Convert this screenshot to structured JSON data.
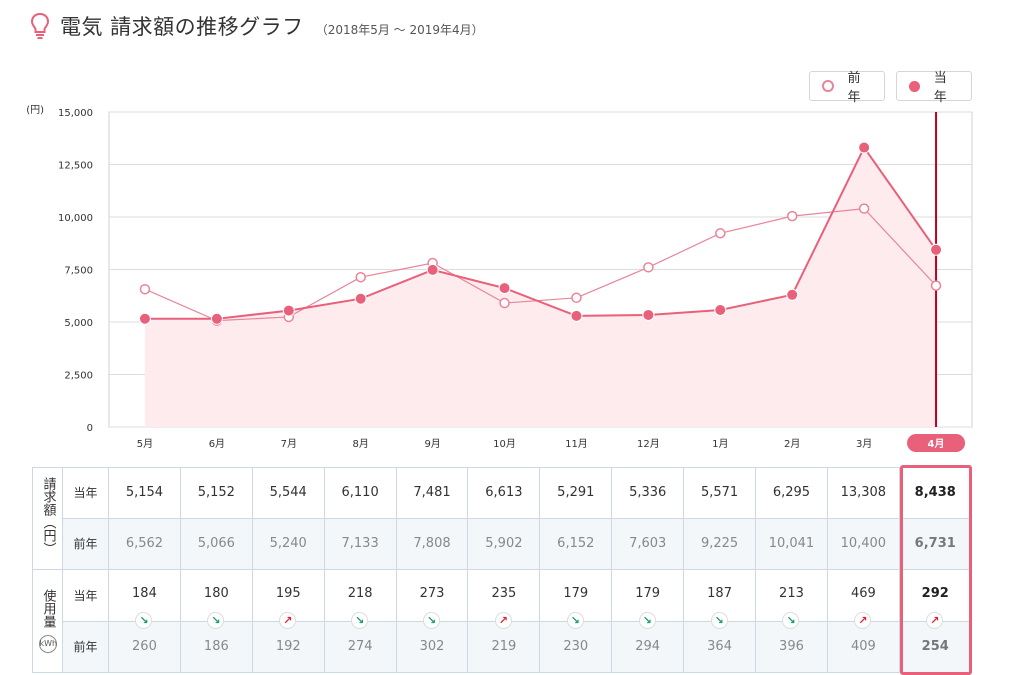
{
  "header": {
    "icon": "lightbulb-icon",
    "title": "電気 請求額の推移グラフ",
    "period": "（2018年5月 〜 2019年4月）"
  },
  "legend": {
    "prev_label": "前年",
    "curr_label": "当年"
  },
  "colors": {
    "accent": "#e8607a",
    "current_line": "#e8607a",
    "previous_line": "#e8859a",
    "area_fill": "#fdebee",
    "marker_line": "#c00020",
    "down_arrow": "#1a9a6c",
    "up_arrow": "#e0203a"
  },
  "chart_data": {
    "type": "line",
    "ylabel": "(円)",
    "ylim": [
      0,
      15000
    ],
    "yticks": [
      "0",
      "2,500",
      "5,000",
      "7,500",
      "10,000",
      "12,500",
      "15,000"
    ],
    "categories": [
      "5月",
      "6月",
      "7月",
      "8月",
      "9月",
      "10月",
      "11月",
      "12月",
      "1月",
      "2月",
      "3月",
      "4月"
    ],
    "selected_index": 11,
    "series": [
      {
        "name": "前年",
        "values": [
          6562,
          5066,
          5240,
          7133,
          7808,
          5902,
          6152,
          7603,
          9225,
          10041,
          10400,
          6731
        ]
      },
      {
        "name": "当年",
        "values": [
          5154,
          5152,
          5544,
          6110,
          7481,
          6613,
          5291,
          5336,
          5571,
          6295,
          13308,
          8438
        ]
      }
    ]
  },
  "table": {
    "billing_group_label": "請求額",
    "billing_unit": "（円）",
    "usage_group_label": "使用量",
    "usage_unit": "kWh",
    "current_label": "当年",
    "previous_label": "前年",
    "billing_current": [
      "5,154",
      "5,152",
      "5,544",
      "6,110",
      "7,481",
      "6,613",
      "5,291",
      "5,336",
      "5,571",
      "6,295",
      "13,308",
      "8,438"
    ],
    "billing_previous": [
      "6,562",
      "5,066",
      "5,240",
      "7,133",
      "7,808",
      "5,902",
      "6,152",
      "7,603",
      "9,225",
      "10,041",
      "10,400",
      "6,731"
    ],
    "usage_current": [
      "184",
      "180",
      "195",
      "218",
      "273",
      "235",
      "179",
      "179",
      "187",
      "213",
      "469",
      "292"
    ],
    "usage_previous": [
      "260",
      "186",
      "192",
      "274",
      "302",
      "219",
      "230",
      "294",
      "364",
      "396",
      "409",
      "254"
    ],
    "usage_trend": [
      "down",
      "down",
      "up",
      "down",
      "down",
      "up",
      "down",
      "down",
      "down",
      "down",
      "up",
      "up"
    ]
  }
}
